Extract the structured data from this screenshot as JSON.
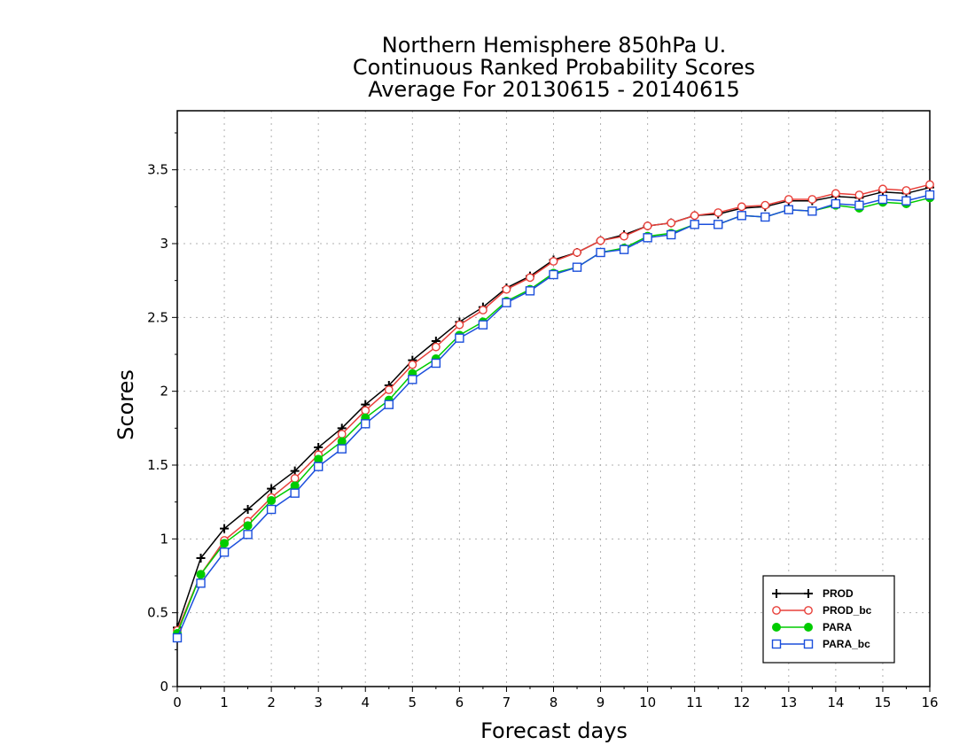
{
  "chart_data": {
    "type": "line",
    "title_lines": [
      "Northern Hemisphere 850hPa U.",
      "Continuous Ranked Probability Scores",
      "Average For 20130615 - 20140615"
    ],
    "xlabel": "Forecast days",
    "ylabel": "Scores",
    "xlim": [
      0,
      16
    ],
    "ylim": [
      0,
      3.9
    ],
    "xticks": [
      "0",
      "1",
      "2",
      "3",
      "4",
      "5",
      "6",
      "7",
      "8",
      "9",
      "10",
      "11",
      "12",
      "13",
      "14",
      "15",
      "16"
    ],
    "yticks": [
      "0",
      "0.5",
      "1",
      "1.5",
      "2",
      "2.5",
      "3",
      "3.5"
    ],
    "grid": true,
    "legend_position": "bottom-right",
    "x": [
      0,
      0.5,
      1,
      1.5,
      2,
      2.5,
      3,
      3.5,
      4,
      4.5,
      5,
      5.5,
      6,
      6.5,
      7,
      7.5,
      8,
      8.5,
      9,
      9.5,
      10,
      10.5,
      11,
      11.5,
      12,
      12.5,
      13,
      13.5,
      14,
      14.5,
      15,
      15.5,
      16
    ],
    "series": [
      {
        "name": "PROD",
        "color": "#000000",
        "marker": "plus",
        "values": [
          0.4,
          0.87,
          1.07,
          1.2,
          1.34,
          1.46,
          1.62,
          1.75,
          1.91,
          2.04,
          2.21,
          2.34,
          2.47,
          2.57,
          2.7,
          2.78,
          2.89,
          2.94,
          3.02,
          3.06,
          3.12,
          3.14,
          3.19,
          3.2,
          3.24,
          3.25,
          3.29,
          3.29,
          3.32,
          3.31,
          3.35,
          3.34,
          3.38
        ]
      },
      {
        "name": "PROD_bc",
        "color": "#e8403a",
        "marker": "circle",
        "values": [
          0.38,
          0.76,
          0.99,
          1.12,
          1.28,
          1.41,
          1.57,
          1.71,
          1.87,
          2.01,
          2.18,
          2.3,
          2.45,
          2.55,
          2.69,
          2.77,
          2.88,
          2.94,
          3.02,
          3.05,
          3.12,
          3.14,
          3.19,
          3.21,
          3.25,
          3.26,
          3.3,
          3.3,
          3.34,
          3.33,
          3.37,
          3.36,
          3.4
        ]
      },
      {
        "name": "PARA",
        "color": "#00cc00",
        "marker": "filled-circle",
        "values": [
          0.36,
          0.76,
          0.97,
          1.09,
          1.26,
          1.36,
          1.54,
          1.66,
          1.82,
          1.94,
          2.12,
          2.22,
          2.38,
          2.47,
          2.61,
          2.69,
          2.8,
          2.84,
          2.94,
          2.97,
          3.05,
          3.07,
          3.13,
          3.13,
          3.19,
          3.18,
          3.23,
          3.22,
          3.26,
          3.24,
          3.28,
          3.27,
          3.31
        ]
      },
      {
        "name": "PARA_bc",
        "color": "#1b4fdc",
        "marker": "square",
        "values": [
          0.33,
          0.7,
          0.91,
          1.03,
          1.2,
          1.31,
          1.49,
          1.61,
          1.78,
          1.91,
          2.08,
          2.19,
          2.36,
          2.45,
          2.6,
          2.68,
          2.79,
          2.84,
          2.94,
          2.96,
          3.04,
          3.06,
          3.13,
          3.13,
          3.19,
          3.18,
          3.23,
          3.22,
          3.27,
          3.26,
          3.3,
          3.29,
          3.33
        ]
      }
    ]
  }
}
